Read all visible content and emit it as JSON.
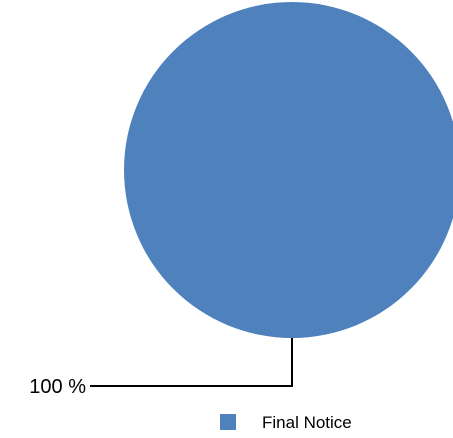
{
  "chart_data": {
    "type": "pie",
    "title": "",
    "slices": [
      {
        "name": "Final Notice",
        "value": 100,
        "label": "100 %",
        "color": "#4f81bd"
      }
    ],
    "legend": {
      "position": "bottom",
      "entries": [
        "Final Notice"
      ]
    }
  }
}
